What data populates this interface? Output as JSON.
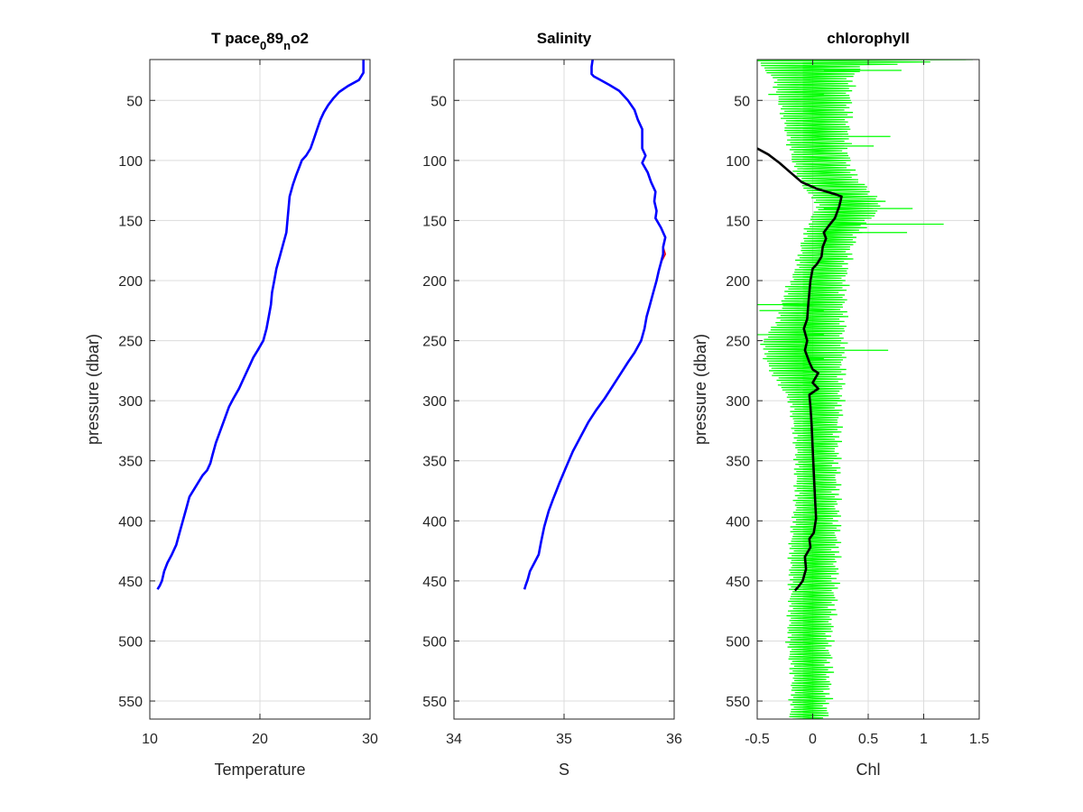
{
  "chart_data": [
    {
      "type": "line",
      "title": {
        "main": "T pace",
        "sub1": "0",
        "mid": "89",
        "sub2": "n",
        "tail": "o2"
      },
      "xlabel": "Temperature",
      "ylabel": "pressure (dbar)",
      "xlim": [
        10,
        30
      ],
      "ylim": [
        565,
        16
      ],
      "xticks": [
        "10",
        "20",
        "30"
      ],
      "yticks": [
        "50",
        "100",
        "150",
        "200",
        "250",
        "300",
        "350",
        "400",
        "450",
        "500",
        "550"
      ],
      "grid": true,
      "series": [
        {
          "color": "#0000ff",
          "points": [
            [
              29.4,
              16
            ],
            [
              29.4,
              20
            ],
            [
              29.4,
              27
            ],
            [
              29.0,
              33
            ],
            [
              28.0,
              38
            ],
            [
              27.2,
              43
            ],
            [
              26.7,
              48
            ],
            [
              26.2,
              54
            ],
            [
              25.8,
              60
            ],
            [
              25.5,
              66
            ],
            [
              25.2,
              74
            ],
            [
              24.9,
              82
            ],
            [
              24.6,
              90
            ],
            [
              24.2,
              96
            ],
            [
              23.8,
              100
            ],
            [
              23.6,
              105
            ],
            [
              23.3,
              112
            ],
            [
              23.0,
              120
            ],
            [
              22.7,
              130
            ],
            [
              22.6,
              140
            ],
            [
              22.5,
              150
            ],
            [
              22.4,
              160
            ],
            [
              22.1,
              170
            ],
            [
              21.8,
              180
            ],
            [
              21.5,
              190
            ],
            [
              21.3,
              200
            ],
            [
              21.1,
              210
            ],
            [
              21.0,
              220
            ],
            [
              20.8,
              230
            ],
            [
              20.6,
              240
            ],
            [
              20.3,
              250
            ],
            [
              19.8,
              258
            ],
            [
              19.4,
              264
            ],
            [
              19.0,
              272
            ],
            [
              18.6,
              280
            ],
            [
              18.1,
              290
            ],
            [
              17.6,
              298
            ],
            [
              17.2,
              305
            ],
            [
              16.8,
              315
            ],
            [
              16.4,
              325
            ],
            [
              16.0,
              335
            ],
            [
              15.7,
              345
            ],
            [
              15.5,
              352
            ],
            [
              15.2,
              358
            ],
            [
              14.8,
              362
            ],
            [
              14.4,
              368
            ],
            [
              14.0,
              374
            ],
            [
              13.6,
              380
            ],
            [
              13.3,
              390
            ],
            [
              13.0,
              400
            ],
            [
              12.7,
              410
            ],
            [
              12.4,
              420
            ],
            [
              12.0,
              428
            ],
            [
              11.6,
              435
            ],
            [
              11.3,
              442
            ],
            [
              11.1,
              450
            ],
            [
              10.9,
              454
            ],
            [
              10.7,
              457
            ]
          ]
        }
      ]
    },
    {
      "type": "line",
      "title": "Salinity",
      "xlabel": "S",
      "ylabel": "",
      "xlim": [
        34,
        36
      ],
      "ylim": [
        565,
        16
      ],
      "xticks": [
        "34",
        "35",
        "36"
      ],
      "yticks": [
        "50",
        "100",
        "150",
        "200",
        "250",
        "300",
        "350",
        "400",
        "450",
        "500",
        "550"
      ],
      "grid": true,
      "series": [
        {
          "color": "#ff0000",
          "points": [
            [
              35.26,
              16
            ],
            [
              35.25,
              22
            ],
            [
              35.25,
              28
            ],
            [
              35.27,
              30
            ],
            [
              35.33,
              33
            ],
            [
              35.41,
              37
            ],
            [
              35.5,
              42
            ],
            [
              35.58,
              50
            ],
            [
              35.64,
              58
            ],
            [
              35.67,
              66
            ],
            [
              35.71,
              74
            ],
            [
              35.71,
              82
            ],
            [
              35.71,
              90
            ],
            [
              35.74,
              96
            ],
            [
              35.71,
              102
            ],
            [
              35.76,
              110
            ],
            [
              35.79,
              118
            ],
            [
              35.83,
              126
            ],
            [
              35.82,
              134
            ],
            [
              35.84,
              142
            ],
            [
              35.83,
              148
            ],
            [
              35.88,
              156
            ],
            [
              35.92,
              164
            ],
            [
              35.9,
              172
            ],
            [
              35.92,
              178
            ],
            [
              35.88,
              185
            ],
            [
              35.86,
              192
            ],
            [
              35.84,
              200
            ],
            [
              35.81,
              210
            ],
            [
              35.78,
              220
            ],
            [
              35.75,
              230
            ],
            [
              35.73,
              240
            ],
            [
              35.7,
              250
            ],
            [
              35.64,
              260
            ],
            [
              35.58,
              268
            ],
            [
              35.51,
              278
            ],
            [
              35.44,
              288
            ],
            [
              35.37,
              298
            ],
            [
              35.29,
              308
            ],
            [
              35.22,
              318
            ],
            [
              35.15,
              330
            ],
            [
              35.08,
              342
            ],
            [
              35.02,
              355
            ],
            [
              34.96,
              368
            ],
            [
              34.93,
              375
            ],
            [
              34.9,
              382
            ],
            [
              34.86,
              392
            ],
            [
              34.82,
              405
            ],
            [
              34.79,
              418
            ],
            [
              34.77,
              428
            ],
            [
              34.73,
              435
            ],
            [
              34.69,
              442
            ],
            [
              34.67,
              449
            ],
            [
              34.65,
              454
            ],
            [
              34.64,
              457
            ]
          ]
        },
        {
          "color": "#0000ff",
          "points": [
            [
              35.26,
              16
            ],
            [
              35.25,
              22
            ],
            [
              35.25,
              28
            ],
            [
              35.27,
              30
            ],
            [
              35.33,
              33
            ],
            [
              35.41,
              37
            ],
            [
              35.5,
              42
            ],
            [
              35.58,
              50
            ],
            [
              35.64,
              58
            ],
            [
              35.67,
              66
            ],
            [
              35.71,
              74
            ],
            [
              35.71,
              82
            ],
            [
              35.71,
              90
            ],
            [
              35.74,
              96
            ],
            [
              35.71,
              102
            ],
            [
              35.76,
              110
            ],
            [
              35.79,
              118
            ],
            [
              35.83,
              126
            ],
            [
              35.82,
              134
            ],
            [
              35.84,
              142
            ],
            [
              35.83,
              148
            ],
            [
              35.88,
              156
            ],
            [
              35.92,
              164
            ],
            [
              35.9,
              172
            ],
            [
              35.9,
              178
            ],
            [
              35.88,
              185
            ],
            [
              35.86,
              192
            ],
            [
              35.84,
              200
            ],
            [
              35.81,
              210
            ],
            [
              35.78,
              220
            ],
            [
              35.75,
              230
            ],
            [
              35.73,
              240
            ],
            [
              35.7,
              250
            ],
            [
              35.64,
              260
            ],
            [
              35.58,
              268
            ],
            [
              35.51,
              278
            ],
            [
              35.44,
              288
            ],
            [
              35.37,
              298
            ],
            [
              35.29,
              308
            ],
            [
              35.22,
              318
            ],
            [
              35.15,
              330
            ],
            [
              35.08,
              342
            ],
            [
              35.02,
              355
            ],
            [
              34.96,
              368
            ],
            [
              34.93,
              375
            ],
            [
              34.9,
              382
            ],
            [
              34.86,
              392
            ],
            [
              34.82,
              405
            ],
            [
              34.79,
              418
            ],
            [
              34.77,
              428
            ],
            [
              34.73,
              435
            ],
            [
              34.69,
              442
            ],
            [
              34.67,
              449
            ],
            [
              34.65,
              454
            ],
            [
              34.64,
              457
            ]
          ]
        }
      ]
    },
    {
      "type": "line",
      "title": "chlorophyll",
      "xlabel": "Chl",
      "ylabel": "pressure (dbar)",
      "xlim": [
        -0.5,
        1.5
      ],
      "ylim": [
        565,
        16
      ],
      "xticks": [
        "-0.5",
        "0",
        "0.5",
        "1",
        "1.5"
      ],
      "yticks": [
        "50",
        "100",
        "150",
        "200",
        "250",
        "300",
        "350",
        "400",
        "450",
        "500",
        "550"
      ],
      "grid": true,
      "envelope": {
        "color": "#00ff00",
        "band": [
          [
            16,
            -0.5,
            1.4
          ],
          [
            22,
            -0.45,
            0.45
          ],
          [
            30,
            -0.35,
            0.35
          ],
          [
            50,
            -0.3,
            0.33
          ],
          [
            70,
            -0.25,
            0.32
          ],
          [
            90,
            -0.2,
            0.3
          ],
          [
            110,
            -0.15,
            0.35
          ],
          [
            125,
            -0.05,
            0.5
          ],
          [
            135,
            0.05,
            0.62
          ],
          [
            145,
            0.0,
            0.55
          ],
          [
            155,
            -0.05,
            0.45
          ],
          [
            170,
            -0.1,
            0.35
          ],
          [
            190,
            -0.15,
            0.3
          ],
          [
            210,
            -0.25,
            0.28
          ],
          [
            230,
            -0.3,
            0.28
          ],
          [
            250,
            -0.45,
            0.27
          ],
          [
            270,
            -0.4,
            0.27
          ],
          [
            300,
            -0.2,
            0.25
          ],
          [
            340,
            -0.15,
            0.22
          ],
          [
            380,
            -0.15,
            0.22
          ],
          [
            420,
            -0.2,
            0.22
          ],
          [
            460,
            -0.2,
            0.2
          ],
          [
            500,
            -0.22,
            0.15
          ],
          [
            530,
            -0.18,
            0.15
          ],
          [
            565,
            -0.2,
            0.12
          ]
        ],
        "spikes": [
          [
            16,
            1.38
          ],
          [
            25,
            0.8
          ],
          [
            45,
            -0.4
          ],
          [
            80,
            0.7
          ],
          [
            88,
            0.55
          ],
          [
            140,
            0.9
          ],
          [
            153,
            1.18
          ],
          [
            160,
            0.85
          ],
          [
            220,
            -0.5
          ],
          [
            225,
            -0.48
          ],
          [
            245,
            -0.5
          ],
          [
            258,
            0.68
          ],
          [
            265,
            -0.45
          ]
        ]
      },
      "series": [
        {
          "color": "#000000",
          "points": [
            [
              -0.5,
              90
            ],
            [
              -0.4,
              95
            ],
            [
              -0.3,
              102
            ],
            [
              -0.2,
              110
            ],
            [
              -0.1,
              118
            ],
            [
              0.05,
              124
            ],
            [
              0.2,
              128
            ],
            [
              0.26,
              130
            ],
            [
              0.24,
              138
            ],
            [
              0.2,
              148
            ],
            [
              0.14,
              155
            ],
            [
              0.1,
              160
            ],
            [
              0.12,
              165
            ],
            [
              0.09,
              172
            ],
            [
              0.08,
              180
            ],
            [
              0.04,
              186
            ],
            [
              0.0,
              190
            ],
            [
              -0.02,
              200
            ],
            [
              -0.03,
              210
            ],
            [
              -0.04,
              220
            ],
            [
              -0.05,
              232
            ],
            [
              -0.08,
              240
            ],
            [
              -0.05,
              250
            ],
            [
              -0.07,
              258
            ],
            [
              -0.03,
              268
            ],
            [
              0.0,
              274
            ],
            [
              0.05,
              277
            ],
            [
              0.0,
              285
            ],
            [
              0.05,
              290
            ],
            [
              -0.03,
              295
            ],
            [
              -0.02,
              305
            ],
            [
              -0.01,
              320
            ],
            [
              0.0,
              340
            ],
            [
              0.01,
              360
            ],
            [
              0.02,
              380
            ],
            [
              0.03,
              398
            ],
            [
              0.01,
              410
            ],
            [
              -0.03,
              415
            ],
            [
              -0.02,
              422
            ],
            [
              -0.07,
              430
            ],
            [
              -0.06,
              440
            ],
            [
              -0.09,
              450
            ],
            [
              -0.13,
              455
            ],
            [
              -0.16,
              458
            ]
          ]
        }
      ]
    }
  ]
}
